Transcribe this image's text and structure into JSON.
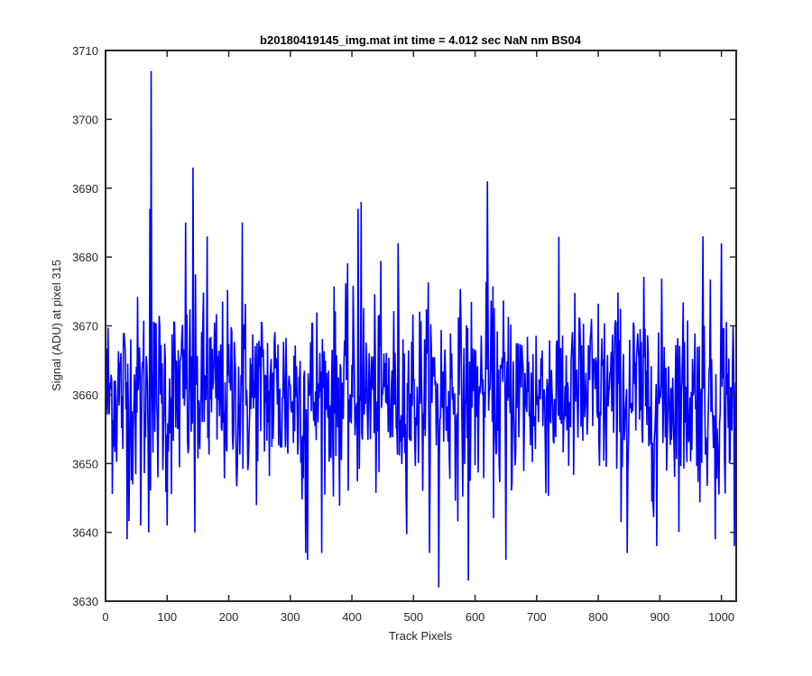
{
  "chart_data": {
    "type": "line",
    "title": "b20180419145_img.mat int time = 4.012 sec  NaN nm BS04",
    "xlabel": "Track Pixels",
    "ylabel": "Signal (ADU) at pixel 315",
    "xlim": [
      0,
      1024
    ],
    "ylim": [
      3630,
      3710
    ],
    "xticks": [
      0,
      100,
      200,
      300,
      400,
      500,
      600,
      700,
      800,
      900,
      1000
    ],
    "yticks": [
      3630,
      3640,
      3650,
      3660,
      3670,
      3680,
      3690,
      3700,
      3710
    ],
    "xtick_labels": [
      "0",
      "100",
      "200",
      "300",
      "400",
      "500",
      "600",
      "700",
      "800",
      "900",
      "1000"
    ],
    "ytick_labels": [
      "3630",
      "3640",
      "3650",
      "3660",
      "3670",
      "3680",
      "3690",
      "3700",
      "3710"
    ],
    "grid": false,
    "series": [
      {
        "color": "#0000ff",
        "x_start": 1,
        "x_step": 1,
        "count": 1024,
        "mean": 3660,
        "noise_spread": 7,
        "notable_points": [
          {
            "x": 35,
            "y": 3639
          },
          {
            "x": 57,
            "y": 3641
          },
          {
            "x": 70,
            "y": 3640
          },
          {
            "x": 72,
            "y": 3687
          },
          {
            "x": 74,
            "y": 3707
          },
          {
            "x": 100,
            "y": 3641
          },
          {
            "x": 130,
            "y": 3685
          },
          {
            "x": 142,
            "y": 3693
          },
          {
            "x": 145,
            "y": 3640
          },
          {
            "x": 165,
            "y": 3683
          },
          {
            "x": 222,
            "y": 3685
          },
          {
            "x": 325,
            "y": 3637
          },
          {
            "x": 328,
            "y": 3636
          },
          {
            "x": 410,
            "y": 3687
          },
          {
            "x": 415,
            "y": 3688
          },
          {
            "x": 475,
            "y": 3682
          },
          {
            "x": 541,
            "y": 3632
          },
          {
            "x": 589,
            "y": 3633
          },
          {
            "x": 620,
            "y": 3691
          },
          {
            "x": 650,
            "y": 3636
          },
          {
            "x": 847,
            "y": 3637
          },
          {
            "x": 895,
            "y": 3638
          },
          {
            "x": 970,
            "y": 3683
          },
          {
            "x": 990,
            "y": 3639
          },
          {
            "x": 1000,
            "y": 3682
          },
          {
            "x": 1021,
            "y": 3638
          }
        ]
      }
    ]
  }
}
